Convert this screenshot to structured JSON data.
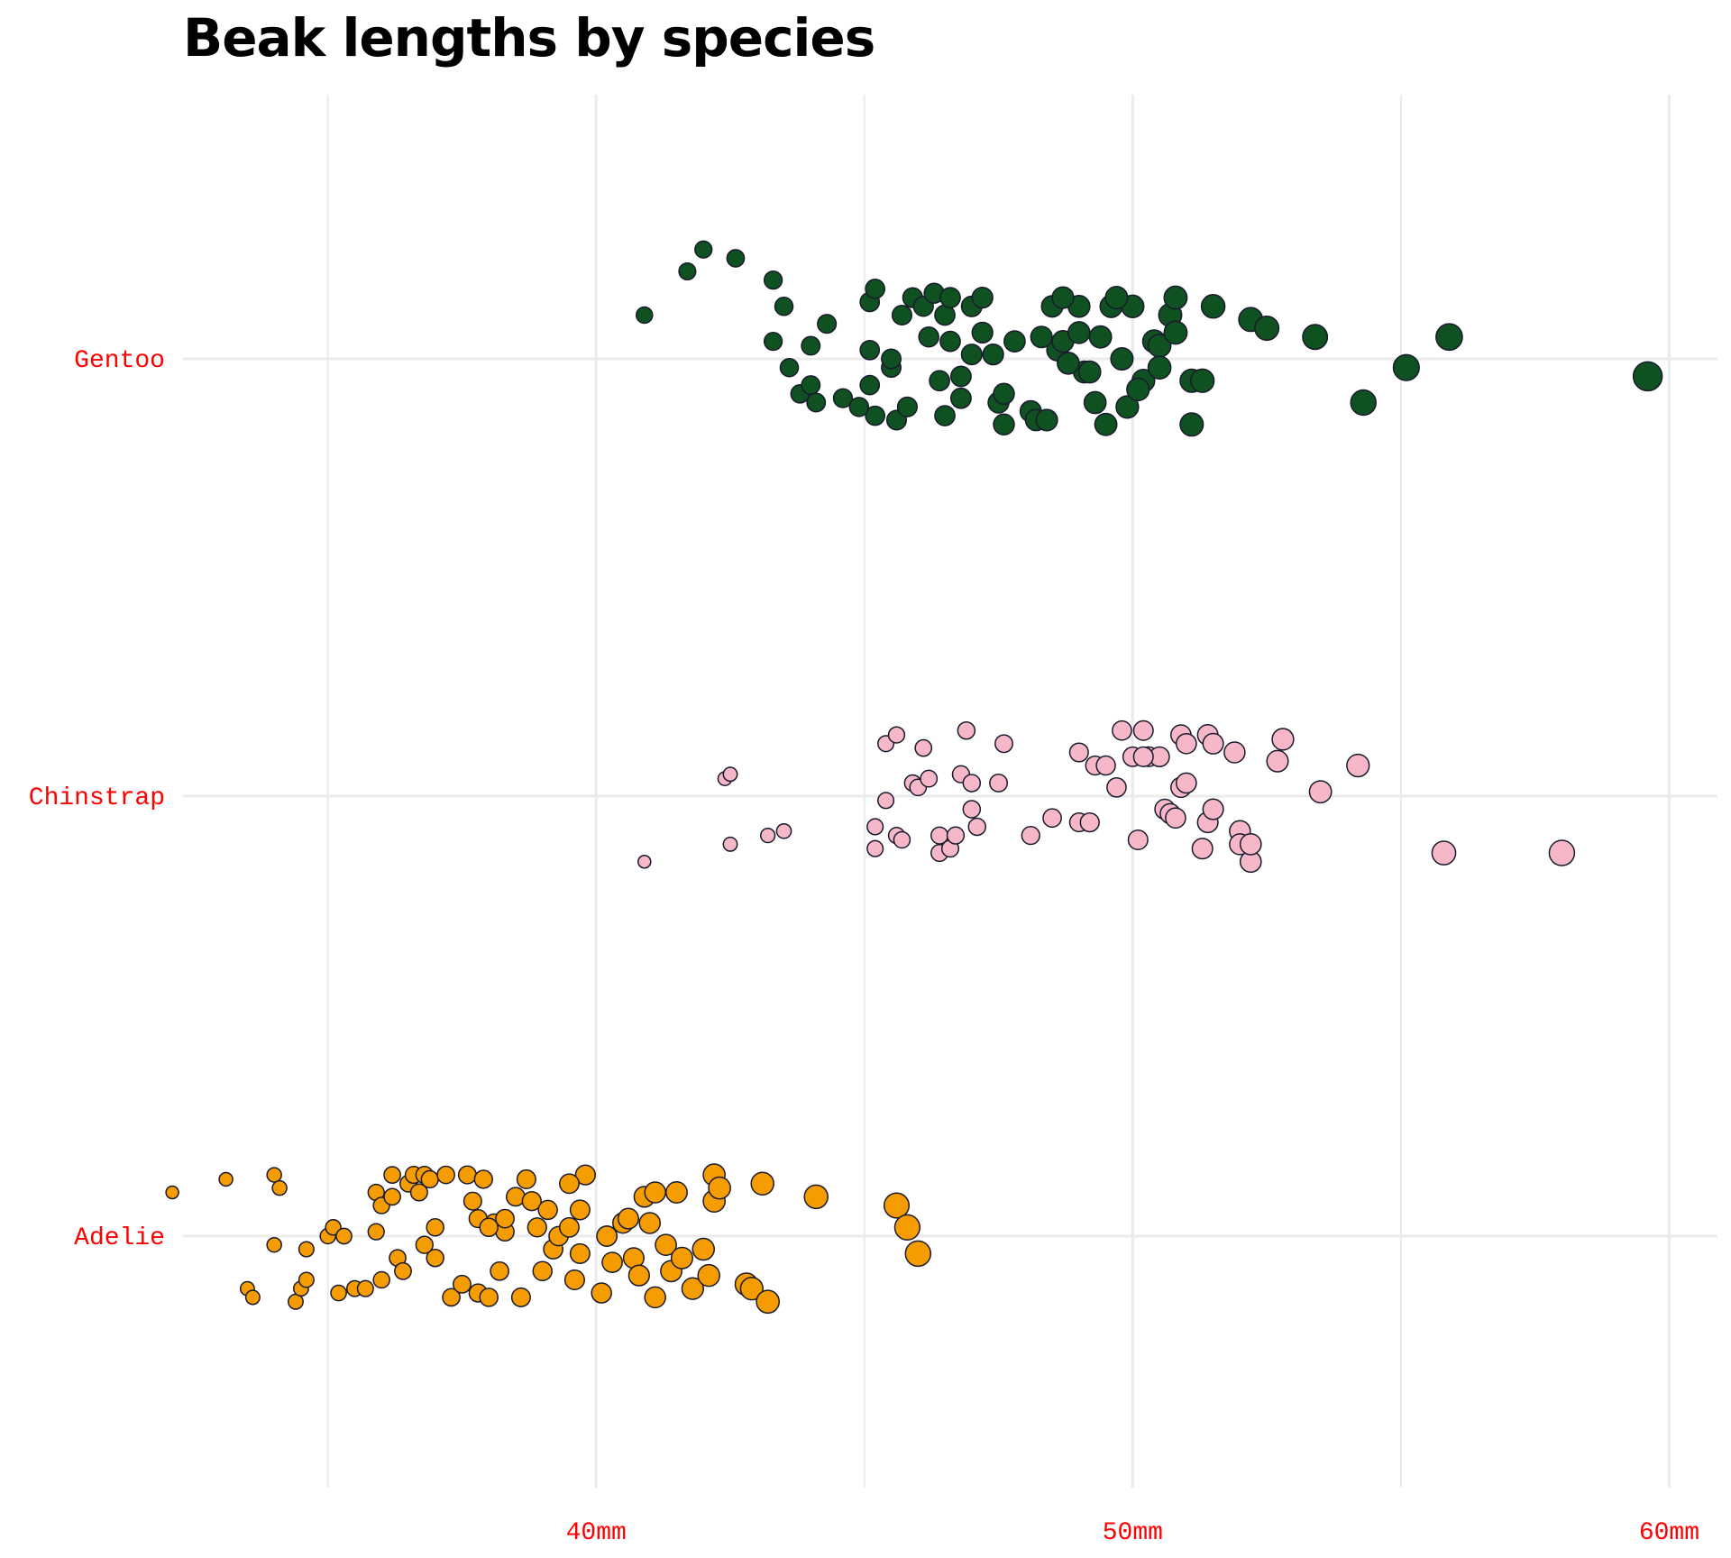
{
  "chart_data": {
    "type": "scatter",
    "title": "Beak lengths by species",
    "xlabel": "",
    "ylabel": "",
    "xlim": [
      32.3,
      60.9
    ],
    "x_ticks": [
      40,
      50,
      60
    ],
    "x_tick_labels": [
      "40mm",
      "50mm",
      "60mm"
    ],
    "x_minor_ticks": [
      35,
      45,
      55
    ],
    "categories": [
      "Adelie",
      "Chinstrap",
      "Gentoo"
    ],
    "grid": true,
    "legend": "none",
    "tick_label_color": "#ff0000",
    "grid_color": "#ebebeb",
    "marker_stroke": "#1a1a2e",
    "series": [
      {
        "name": "Gentoo",
        "color": "#0f5120",
        "points": [
          [
            40.9,
            0.1
          ],
          [
            41.7,
            0.2
          ],
          [
            42.0,
            0.25
          ],
          [
            42.6,
            0.23
          ],
          [
            43.3,
            0.18
          ],
          [
            43.3,
            0.04
          ],
          [
            43.5,
            0.12
          ],
          [
            43.6,
            -0.02
          ],
          [
            43.8,
            -0.08
          ],
          [
            44.0,
            -0.06
          ],
          [
            44.1,
            -0.1
          ],
          [
            44.3,
            0.08
          ],
          [
            44.0,
            0.03
          ],
          [
            44.6,
            -0.09
          ],
          [
            45.1,
            0.02
          ],
          [
            45.1,
            -0.06
          ],
          [
            45.2,
            -0.13
          ],
          [
            45.5,
            -0.02
          ],
          [
            45.5,
            0.0
          ],
          [
            45.6,
            -0.14
          ],
          [
            45.8,
            -0.11
          ],
          [
            45.1,
            0.13
          ],
          [
            45.9,
            0.14
          ],
          [
            45.2,
            0.16
          ],
          [
            46.1,
            0.12
          ],
          [
            46.3,
            0.15
          ],
          [
            46.5,
            0.1
          ],
          [
            46.6,
            0.04
          ],
          [
            46.8,
            -0.04
          ],
          [
            46.5,
            -0.13
          ],
          [
            46.8,
            -0.09
          ],
          [
            47.0,
            0.12
          ],
          [
            47.2,
            0.06
          ],
          [
            47.4,
            0.01
          ],
          [
            47.5,
            -0.1
          ],
          [
            47.6,
            -0.08
          ],
          [
            47.6,
            -0.15
          ],
          [
            47.8,
            0.04
          ],
          [
            48.1,
            -0.12
          ],
          [
            48.2,
            -0.14
          ],
          [
            48.4,
            -0.14
          ],
          [
            48.5,
            0.12
          ],
          [
            48.6,
            0.02
          ],
          [
            48.7,
            0.04
          ],
          [
            48.8,
            -0.01
          ],
          [
            49.0,
            0.06
          ],
          [
            49.1,
            -0.03
          ],
          [
            49.3,
            -0.1
          ],
          [
            49.4,
            0.05
          ],
          [
            49.5,
            -0.15
          ],
          [
            49.6,
            0.12
          ],
          [
            49.8,
            0.0
          ],
          [
            49.9,
            -0.11
          ],
          [
            50.0,
            0.12
          ],
          [
            50.2,
            -0.05
          ],
          [
            50.4,
            0.04
          ],
          [
            50.5,
            0.03
          ],
          [
            50.5,
            -0.02
          ],
          [
            50.7,
            0.1
          ],
          [
            50.8,
            0.06
          ],
          [
            50.8,
            0.14
          ],
          [
            51.1,
            -0.05
          ],
          [
            51.3,
            -0.05
          ],
          [
            51.1,
            -0.15
          ],
          [
            51.5,
            0.12
          ],
          [
            52.2,
            0.09
          ],
          [
            52.5,
            0.07
          ],
          [
            53.4,
            0.05
          ],
          [
            54.3,
            -0.1
          ],
          [
            55.1,
            -0.02
          ],
          [
            55.9,
            0.05
          ],
          [
            59.6,
            -0.04
          ],
          [
            49.0,
            0.12
          ],
          [
            49.7,
            0.14
          ],
          [
            48.7,
            0.14
          ],
          [
            47.2,
            0.14
          ],
          [
            46.6,
            0.14
          ],
          [
            45.7,
            0.1
          ],
          [
            46.2,
            0.05
          ],
          [
            47.0,
            0.01
          ],
          [
            48.3,
            0.05
          ],
          [
            49.2,
            -0.03
          ],
          [
            50.1,
            -0.07
          ],
          [
            48.8,
            -0.01
          ],
          [
            46.4,
            -0.05
          ],
          [
            44.9,
            -0.11
          ]
        ]
      },
      {
        "name": "Chinstrap",
        "color": "#f6b8c8",
        "points": [
          [
            40.9,
            -0.15
          ],
          [
            42.4,
            0.04
          ],
          [
            42.5,
            0.05
          ],
          [
            42.5,
            -0.11
          ],
          [
            43.2,
            -0.09
          ],
          [
            43.5,
            -0.08
          ],
          [
            45.2,
            -0.12
          ],
          [
            45.2,
            -0.07
          ],
          [
            45.4,
            -0.01
          ],
          [
            45.4,
            0.12
          ],
          [
            45.6,
            0.14
          ],
          [
            45.6,
            -0.09
          ],
          [
            45.7,
            -0.1
          ],
          [
            45.9,
            0.03
          ],
          [
            46.0,
            0.02
          ],
          [
            46.1,
            0.11
          ],
          [
            46.2,
            0.04
          ],
          [
            46.4,
            -0.13
          ],
          [
            46.4,
            -0.09
          ],
          [
            46.6,
            -0.12
          ],
          [
            46.7,
            -0.09
          ],
          [
            46.8,
            0.05
          ],
          [
            46.9,
            0.15
          ],
          [
            47.0,
            0.03
          ],
          [
            47.1,
            -0.07
          ],
          [
            47.5,
            0.03
          ],
          [
            47.6,
            0.12
          ],
          [
            48.1,
            -0.09
          ],
          [
            48.5,
            -0.05
          ],
          [
            49.0,
            0.1
          ],
          [
            49.0,
            -0.06
          ],
          [
            49.2,
            -0.06
          ],
          [
            49.3,
            0.07
          ],
          [
            49.5,
            0.07
          ],
          [
            49.7,
            0.02
          ],
          [
            49.8,
            0.15
          ],
          [
            50.0,
            0.09
          ],
          [
            50.1,
            -0.1
          ],
          [
            50.2,
            0.15
          ],
          [
            50.3,
            0.09
          ],
          [
            50.5,
            0.09
          ],
          [
            50.6,
            -0.03
          ],
          [
            50.7,
            -0.04
          ],
          [
            50.8,
            -0.05
          ],
          [
            50.9,
            0.14
          ],
          [
            50.9,
            0.02
          ],
          [
            51.0,
            0.03
          ],
          [
            51.0,
            0.12
          ],
          [
            51.3,
            -0.12
          ],
          [
            51.4,
            -0.06
          ],
          [
            51.4,
            0.14
          ],
          [
            51.5,
            0.12
          ],
          [
            51.5,
            -0.03
          ],
          [
            51.9,
            0.1
          ],
          [
            52.0,
            -0.08
          ],
          [
            52.0,
            -0.11
          ],
          [
            52.2,
            -0.15
          ],
          [
            52.2,
            -0.11
          ],
          [
            52.7,
            0.08
          ],
          [
            52.8,
            0.13
          ],
          [
            53.5,
            0.01
          ],
          [
            54.2,
            0.07
          ],
          [
            55.8,
            -0.13
          ],
          [
            58.0,
            -0.13
          ],
          [
            47.0,
            -0.03
          ],
          [
            50.2,
            0.09
          ]
        ]
      },
      {
        "name": "Adelie",
        "color": "#f59d00",
        "points": [
          [
            32.1,
            0.1
          ],
          [
            33.1,
            0.13
          ],
          [
            33.5,
            -0.12
          ],
          [
            33.6,
            -0.14
          ],
          [
            34.0,
            0.14
          ],
          [
            34.1,
            0.11
          ],
          [
            34.0,
            -0.02
          ],
          [
            34.4,
            -0.15
          ],
          [
            34.5,
            -0.12
          ],
          [
            34.6,
            -0.1
          ],
          [
            34.6,
            -0.03
          ],
          [
            35.0,
            0.0
          ],
          [
            35.1,
            0.02
          ],
          [
            35.2,
            -0.13
          ],
          [
            35.3,
            0.0
          ],
          [
            35.5,
            -0.12
          ],
          [
            35.7,
            -0.12
          ],
          [
            35.9,
            0.1
          ],
          [
            35.9,
            0.01
          ],
          [
            36.0,
            -0.1
          ],
          [
            36.0,
            0.07
          ],
          [
            36.2,
            0.09
          ],
          [
            36.2,
            0.14
          ],
          [
            36.3,
            -0.05
          ],
          [
            36.4,
            -0.08
          ],
          [
            36.5,
            0.12
          ],
          [
            36.6,
            0.14
          ],
          [
            36.7,
            0.1
          ],
          [
            36.8,
            0.14
          ],
          [
            36.9,
            0.13
          ],
          [
            37.0,
            0.02
          ],
          [
            37.2,
            0.14
          ],
          [
            37.3,
            -0.14
          ],
          [
            37.5,
            -0.11
          ],
          [
            37.6,
            0.14
          ],
          [
            37.7,
            0.08
          ],
          [
            37.8,
            0.04
          ],
          [
            37.8,
            -0.13
          ],
          [
            37.9,
            0.13
          ],
          [
            38.0,
            -0.14
          ],
          [
            38.1,
            0.03
          ],
          [
            38.2,
            -0.08
          ],
          [
            38.3,
            0.01
          ],
          [
            38.5,
            0.09
          ],
          [
            38.6,
            -0.14
          ],
          [
            38.7,
            0.13
          ],
          [
            38.8,
            0.08
          ],
          [
            38.9,
            0.02
          ],
          [
            39.0,
            -0.08
          ],
          [
            39.1,
            0.06
          ],
          [
            39.2,
            -0.03
          ],
          [
            39.3,
            0.0
          ],
          [
            39.5,
            0.02
          ],
          [
            39.6,
            -0.1
          ],
          [
            39.7,
            0.06
          ],
          [
            39.8,
            0.14
          ],
          [
            40.1,
            -0.13
          ],
          [
            40.2,
            0.0
          ],
          [
            40.3,
            -0.06
          ],
          [
            40.5,
            0.03
          ],
          [
            40.6,
            0.04
          ],
          [
            40.7,
            -0.05
          ],
          [
            40.8,
            -0.09
          ],
          [
            40.9,
            0.09
          ],
          [
            41.1,
            -0.14
          ],
          [
            41.1,
            0.1
          ],
          [
            41.3,
            -0.02
          ],
          [
            41.4,
            -0.08
          ],
          [
            41.5,
            0.1
          ],
          [
            41.6,
            -0.05
          ],
          [
            41.8,
            -0.12
          ],
          [
            42.0,
            -0.03
          ],
          [
            42.1,
            -0.09
          ],
          [
            42.2,
            0.08
          ],
          [
            42.2,
            0.14
          ],
          [
            42.3,
            0.11
          ],
          [
            42.8,
            -0.11
          ],
          [
            42.9,
            -0.12
          ],
          [
            43.1,
            0.12
          ],
          [
            43.2,
            -0.15
          ],
          [
            44.1,
            0.09
          ],
          [
            45.6,
            0.07
          ],
          [
            45.8,
            0.02
          ],
          [
            46.0,
            -0.04
          ],
          [
            38.3,
            0.04
          ],
          [
            37.0,
            -0.05
          ],
          [
            39.5,
            0.12
          ],
          [
            40.2,
            0.0
          ],
          [
            36.8,
            -0.02
          ],
          [
            38.0,
            0.02
          ],
          [
            41.0,
            0.03
          ],
          [
            39.7,
            -0.04
          ]
        ]
      }
    ]
  }
}
